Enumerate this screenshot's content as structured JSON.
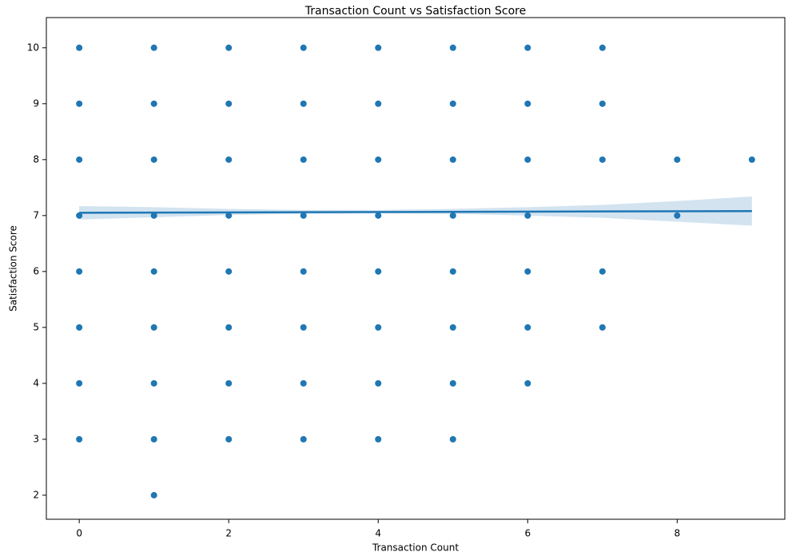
{
  "chart_data": {
    "type": "scatter",
    "title": "Transaction Count vs Satisfaction Score",
    "x_label": "Transaction Count",
    "y_label": "Satisfaction Score",
    "points": {
      "color": "#1f77b4",
      "x": [
        0,
        0,
        0,
        0,
        0,
        0,
        0,
        0,
        1,
        1,
        1,
        1,
        1,
        1,
        1,
        1,
        1,
        2,
        2,
        2,
        2,
        2,
        2,
        2,
        2,
        3,
        3,
        3,
        3,
        3,
        3,
        3,
        3,
        4,
        4,
        4,
        4,
        4,
        4,
        4,
        4,
        5,
        5,
        5,
        5,
        5,
        5,
        5,
        5,
        6,
        6,
        6,
        6,
        6,
        6,
        6,
        7,
        7,
        7,
        7,
        7,
        8,
        8,
        9
      ],
      "y": [
        3,
        4,
        5,
        6,
        7,
        8,
        9,
        10,
        2,
        3,
        4,
        5,
        6,
        7,
        8,
        9,
        10,
        3,
        4,
        5,
        6,
        7,
        8,
        9,
        10,
        3,
        4,
        5,
        6,
        7,
        8,
        9,
        10,
        3,
        4,
        5,
        6,
        7,
        8,
        9,
        10,
        3,
        4,
        5,
        6,
        7,
        8,
        9,
        10,
        4,
        5,
        6,
        7,
        8,
        9,
        10,
        5,
        6,
        8,
        9,
        10,
        7,
        8,
        8
      ]
    },
    "regression": {
      "color": "#1f77b4",
      "x": [
        0,
        9
      ],
      "y": [
        7.05,
        7.08
      ]
    },
    "band": {
      "color": "#d3e3f0",
      "x": [
        0,
        1,
        2,
        3,
        4,
        5,
        6,
        7,
        8,
        9
      ],
      "lower": [
        6.93,
        6.97,
        7.01,
        7.03,
        7.04,
        7.03,
        7.0,
        6.96,
        6.89,
        6.82
      ],
      "upper": [
        7.17,
        7.15,
        7.12,
        7.1,
        7.1,
        7.12,
        7.15,
        7.19,
        7.26,
        7.34
      ]
    },
    "xlim": [
      -0.44,
      9.44
    ],
    "ylim": [
      1.57,
      10.54
    ],
    "xticks": [
      0,
      2,
      4,
      6,
      8
    ],
    "yticks": [
      2,
      3,
      4,
      5,
      6,
      7,
      8,
      9,
      10
    ]
  }
}
